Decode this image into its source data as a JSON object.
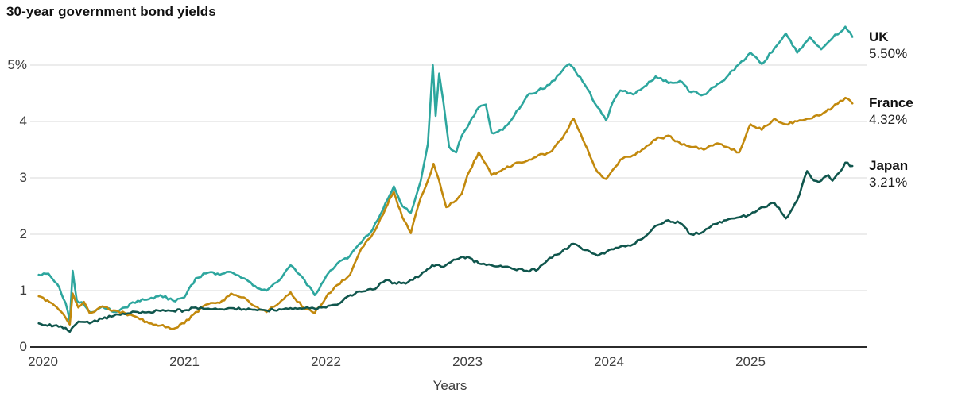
{
  "chart_data": {
    "type": "line",
    "title": "30-year government bond yields",
    "xlabel": "Years",
    "ylabel": "",
    "grid": "horizontal",
    "legend_position": "right-of-line-ends",
    "xlim": [
      2019.97,
      2025.78
    ],
    "ylim": [
      0,
      5.8
    ],
    "x_tick_values": [
      2020,
      2021,
      2022,
      2023,
      2024,
      2025
    ],
    "x_tick_labels": [
      "2020",
      "2021",
      "2022",
      "2023",
      "2024",
      "2025"
    ],
    "y_tick_values": [
      0,
      1,
      2,
      3,
      4,
      5
    ],
    "y_tick_labels": [
      "0",
      "1",
      "2",
      "3",
      "4",
      "5%"
    ],
    "axis_color": "#2b2b2b",
    "gridline_color": "#e1e1e1",
    "series": [
      {
        "name": "UK",
        "end_label": "5.50%",
        "end_value": 5.5,
        "color": "#2DA69E",
        "points": [
          [
            2019.97,
            1.28
          ],
          [
            2020.04,
            1.3
          ],
          [
            2020.1,
            1.12
          ],
          [
            2020.16,
            0.78
          ],
          [
            2020.19,
            0.45
          ],
          [
            2020.21,
            1.35
          ],
          [
            2020.24,
            0.82
          ],
          [
            2020.29,
            0.75
          ],
          [
            2020.33,
            0.62
          ],
          [
            2020.38,
            0.66
          ],
          [
            2020.42,
            0.72
          ],
          [
            2020.5,
            0.62
          ],
          [
            2020.58,
            0.7
          ],
          [
            2020.67,
            0.82
          ],
          [
            2020.75,
            0.85
          ],
          [
            2020.83,
            0.92
          ],
          [
            2020.92,
            0.82
          ],
          [
            2021.0,
            0.88
          ],
          [
            2021.08,
            1.22
          ],
          [
            2021.17,
            1.32
          ],
          [
            2021.25,
            1.28
          ],
          [
            2021.33,
            1.33
          ],
          [
            2021.42,
            1.22
          ],
          [
            2021.5,
            1.08
          ],
          [
            2021.58,
            1.0
          ],
          [
            2021.67,
            1.18
          ],
          [
            2021.75,
            1.45
          ],
          [
            2021.83,
            1.25
          ],
          [
            2021.92,
            0.92
          ],
          [
            2022.0,
            1.25
          ],
          [
            2022.08,
            1.48
          ],
          [
            2022.17,
            1.62
          ],
          [
            2022.25,
            1.85
          ],
          [
            2022.33,
            2.08
          ],
          [
            2022.42,
            2.55
          ],
          [
            2022.48,
            2.85
          ],
          [
            2022.54,
            2.5
          ],
          [
            2022.6,
            2.38
          ],
          [
            2022.67,
            2.95
          ],
          [
            2022.72,
            3.6
          ],
          [
            2022.755,
            5.0
          ],
          [
            2022.775,
            4.1
          ],
          [
            2022.8,
            4.85
          ],
          [
            2022.83,
            4.35
          ],
          [
            2022.87,
            3.55
          ],
          [
            2022.92,
            3.45
          ],
          [
            2022.96,
            3.75
          ],
          [
            2023.0,
            3.9
          ],
          [
            2023.08,
            4.25
          ],
          [
            2023.13,
            4.3
          ],
          [
            2023.17,
            3.8
          ],
          [
            2023.25,
            3.85
          ],
          [
            2023.33,
            4.1
          ],
          [
            2023.42,
            4.45
          ],
          [
            2023.5,
            4.55
          ],
          [
            2023.58,
            4.65
          ],
          [
            2023.67,
            4.9
          ],
          [
            2023.72,
            5.02
          ],
          [
            2023.75,
            4.95
          ],
          [
            2023.83,
            4.65
          ],
          [
            2023.92,
            4.25
          ],
          [
            2023.98,
            4.02
          ],
          [
            2024.04,
            4.4
          ],
          [
            2024.08,
            4.55
          ],
          [
            2024.17,
            4.48
          ],
          [
            2024.25,
            4.62
          ],
          [
            2024.33,
            4.8
          ],
          [
            2024.42,
            4.68
          ],
          [
            2024.5,
            4.72
          ],
          [
            2024.58,
            4.52
          ],
          [
            2024.67,
            4.48
          ],
          [
            2024.75,
            4.62
          ],
          [
            2024.83,
            4.78
          ],
          [
            2024.92,
            5.02
          ],
          [
            2025.0,
            5.22
          ],
          [
            2025.08,
            5.02
          ],
          [
            2025.17,
            5.3
          ],
          [
            2025.25,
            5.56
          ],
          [
            2025.33,
            5.22
          ],
          [
            2025.42,
            5.5
          ],
          [
            2025.5,
            5.28
          ],
          [
            2025.58,
            5.48
          ],
          [
            2025.67,
            5.68
          ],
          [
            2025.72,
            5.5
          ]
        ]
      },
      {
        "name": "France",
        "end_label": "4.32%",
        "end_value": 4.32,
        "color": "#C2890D",
        "points": [
          [
            2019.97,
            0.9
          ],
          [
            2020.08,
            0.74
          ],
          [
            2020.16,
            0.52
          ],
          [
            2020.19,
            0.4
          ],
          [
            2020.21,
            0.95
          ],
          [
            2020.25,
            0.7
          ],
          [
            2020.29,
            0.8
          ],
          [
            2020.33,
            0.6
          ],
          [
            2020.42,
            0.72
          ],
          [
            2020.5,
            0.65
          ],
          [
            2020.58,
            0.6
          ],
          [
            2020.67,
            0.52
          ],
          [
            2020.75,
            0.42
          ],
          [
            2020.83,
            0.38
          ],
          [
            2020.92,
            0.32
          ],
          [
            2021.0,
            0.42
          ],
          [
            2021.08,
            0.62
          ],
          [
            2021.17,
            0.76
          ],
          [
            2021.25,
            0.78
          ],
          [
            2021.33,
            0.95
          ],
          [
            2021.42,
            0.88
          ],
          [
            2021.5,
            0.72
          ],
          [
            2021.58,
            0.62
          ],
          [
            2021.67,
            0.78
          ],
          [
            2021.75,
            0.97
          ],
          [
            2021.83,
            0.72
          ],
          [
            2021.92,
            0.6
          ],
          [
            2022.0,
            0.88
          ],
          [
            2022.08,
            1.1
          ],
          [
            2022.17,
            1.28
          ],
          [
            2022.25,
            1.75
          ],
          [
            2022.33,
            2.0
          ],
          [
            2022.42,
            2.45
          ],
          [
            2022.48,
            2.75
          ],
          [
            2022.54,
            2.3
          ],
          [
            2022.6,
            2.02
          ],
          [
            2022.67,
            2.65
          ],
          [
            2022.72,
            2.95
          ],
          [
            2022.76,
            3.25
          ],
          [
            2022.8,
            2.95
          ],
          [
            2022.85,
            2.48
          ],
          [
            2022.92,
            2.6
          ],
          [
            2022.96,
            2.72
          ],
          [
            2023.0,
            3.05
          ],
          [
            2023.08,
            3.45
          ],
          [
            2023.17,
            3.05
          ],
          [
            2023.25,
            3.15
          ],
          [
            2023.33,
            3.25
          ],
          [
            2023.42,
            3.3
          ],
          [
            2023.5,
            3.4
          ],
          [
            2023.58,
            3.45
          ],
          [
            2023.67,
            3.7
          ],
          [
            2023.75,
            4.05
          ],
          [
            2023.83,
            3.6
          ],
          [
            2023.92,
            3.1
          ],
          [
            2023.98,
            2.98
          ],
          [
            2024.04,
            3.18
          ],
          [
            2024.08,
            3.32
          ],
          [
            2024.17,
            3.4
          ],
          [
            2024.25,
            3.52
          ],
          [
            2024.33,
            3.68
          ],
          [
            2024.42,
            3.75
          ],
          [
            2024.5,
            3.62
          ],
          [
            2024.58,
            3.55
          ],
          [
            2024.67,
            3.5
          ],
          [
            2024.75,
            3.6
          ],
          [
            2024.83,
            3.55
          ],
          [
            2024.92,
            3.45
          ],
          [
            2025.0,
            3.95
          ],
          [
            2025.08,
            3.85
          ],
          [
            2025.17,
            4.05
          ],
          [
            2025.25,
            3.95
          ],
          [
            2025.33,
            4.0
          ],
          [
            2025.42,
            4.05
          ],
          [
            2025.5,
            4.12
          ],
          [
            2025.58,
            4.25
          ],
          [
            2025.67,
            4.42
          ],
          [
            2025.72,
            4.32
          ]
        ]
      },
      {
        "name": "Japan",
        "end_label": "3.21%",
        "end_value": 3.21,
        "color": "#10564D",
        "points": [
          [
            2019.97,
            0.42
          ],
          [
            2020.08,
            0.38
          ],
          [
            2020.16,
            0.34
          ],
          [
            2020.19,
            0.27
          ],
          [
            2020.25,
            0.45
          ],
          [
            2020.33,
            0.42
          ],
          [
            2020.42,
            0.5
          ],
          [
            2020.5,
            0.55
          ],
          [
            2020.58,
            0.58
          ],
          [
            2020.67,
            0.62
          ],
          [
            2020.75,
            0.62
          ],
          [
            2020.83,
            0.64
          ],
          [
            2020.92,
            0.64
          ],
          [
            2021.0,
            0.65
          ],
          [
            2021.08,
            0.7
          ],
          [
            2021.17,
            0.68
          ],
          [
            2021.25,
            0.67
          ],
          [
            2021.33,
            0.69
          ],
          [
            2021.42,
            0.67
          ],
          [
            2021.5,
            0.66
          ],
          [
            2021.58,
            0.65
          ],
          [
            2021.67,
            0.67
          ],
          [
            2021.75,
            0.69
          ],
          [
            2021.83,
            0.68
          ],
          [
            2021.92,
            0.68
          ],
          [
            2022.0,
            0.7
          ],
          [
            2022.08,
            0.75
          ],
          [
            2022.17,
            0.92
          ],
          [
            2022.25,
            0.98
          ],
          [
            2022.33,
            1.02
          ],
          [
            2022.42,
            1.18
          ],
          [
            2022.5,
            1.12
          ],
          [
            2022.58,
            1.15
          ],
          [
            2022.67,
            1.28
          ],
          [
            2022.75,
            1.45
          ],
          [
            2022.83,
            1.42
          ],
          [
            2022.92,
            1.55
          ],
          [
            2023.0,
            1.6
          ],
          [
            2023.08,
            1.48
          ],
          [
            2023.17,
            1.45
          ],
          [
            2023.25,
            1.42
          ],
          [
            2023.33,
            1.38
          ],
          [
            2023.42,
            1.35
          ],
          [
            2023.5,
            1.38
          ],
          [
            2023.58,
            1.58
          ],
          [
            2023.67,
            1.7
          ],
          [
            2023.75,
            1.83
          ],
          [
            2023.83,
            1.72
          ],
          [
            2023.92,
            1.62
          ],
          [
            2024.0,
            1.72
          ],
          [
            2024.08,
            1.78
          ],
          [
            2024.17,
            1.82
          ],
          [
            2024.25,
            1.95
          ],
          [
            2024.33,
            2.15
          ],
          [
            2024.42,
            2.25
          ],
          [
            2024.5,
            2.2
          ],
          [
            2024.58,
            2.0
          ],
          [
            2024.67,
            2.05
          ],
          [
            2024.75,
            2.18
          ],
          [
            2024.83,
            2.25
          ],
          [
            2024.92,
            2.3
          ],
          [
            2025.0,
            2.35
          ],
          [
            2025.08,
            2.48
          ],
          [
            2025.17,
            2.55
          ],
          [
            2025.25,
            2.28
          ],
          [
            2025.33,
            2.6
          ],
          [
            2025.4,
            3.12
          ],
          [
            2025.45,
            2.95
          ],
          [
            2025.5,
            2.95
          ],
          [
            2025.55,
            3.05
          ],
          [
            2025.58,
            2.95
          ],
          [
            2025.63,
            3.1
          ],
          [
            2025.67,
            3.27
          ],
          [
            2025.72,
            3.21
          ]
        ]
      }
    ]
  }
}
